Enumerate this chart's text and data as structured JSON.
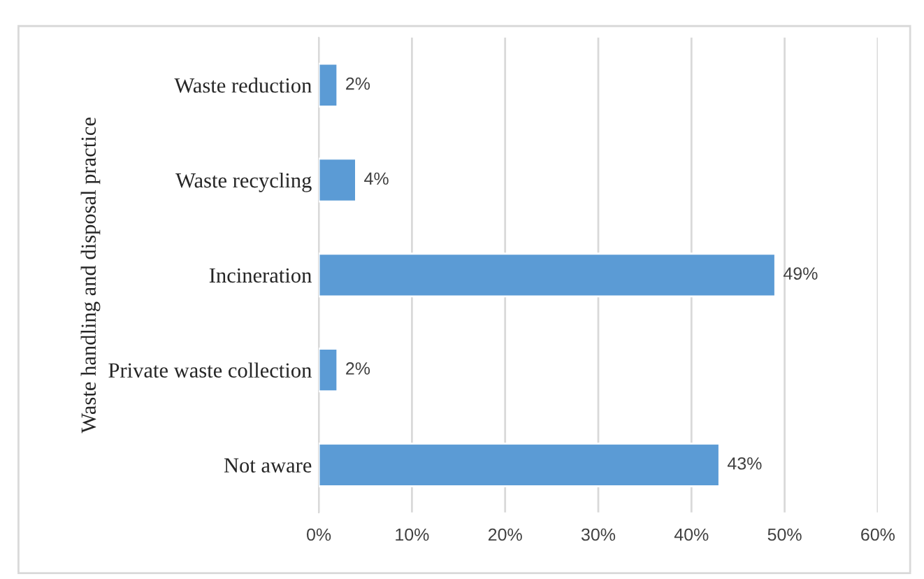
{
  "chart_data": {
    "type": "bar",
    "orientation": "horizontal",
    "ylabel": "Waste handling and disposal practice",
    "categories": [
      "Waste reduction",
      "Waste recycling",
      "Incineration",
      "Private waste collection",
      "Not aware"
    ],
    "values": [
      2,
      4,
      49,
      2,
      43
    ],
    "color": "#5b9bd5",
    "value_labels": [
      "2%",
      "4%",
      "49%",
      "2%",
      "43%"
    ],
    "xlim": [
      0,
      60
    ],
    "xticks": [
      {
        "value": 0,
        "label": "0%"
      },
      {
        "value": 10,
        "label": "10%"
      },
      {
        "value": 20,
        "label": "20%"
      },
      {
        "value": 30,
        "label": "30%"
      },
      {
        "value": 40,
        "label": "40%"
      },
      {
        "value": 50,
        "label": "50%"
      },
      {
        "value": 60,
        "label": "60%"
      }
    ],
    "grid": "x"
  }
}
